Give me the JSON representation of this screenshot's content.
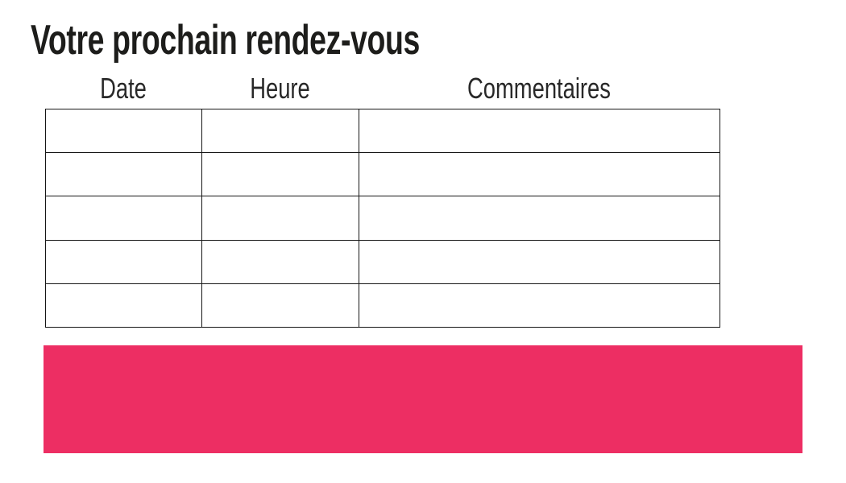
{
  "page": {
    "title": "Votre prochain rendez-vous"
  },
  "appointments_table": {
    "columns": [
      "Date",
      "Heure",
      "Commentaires"
    ],
    "rows": [
      [
        "",
        "",
        ""
      ],
      [
        "",
        "",
        ""
      ],
      [
        "",
        "",
        ""
      ],
      [
        "",
        "",
        ""
      ],
      [
        "",
        "",
        ""
      ]
    ]
  },
  "banner": {
    "color": "#ED2E63"
  },
  "colors": {
    "accent_pink": "#ED2E63",
    "title_text": "#1d1d1b",
    "table_border": "#161616"
  }
}
